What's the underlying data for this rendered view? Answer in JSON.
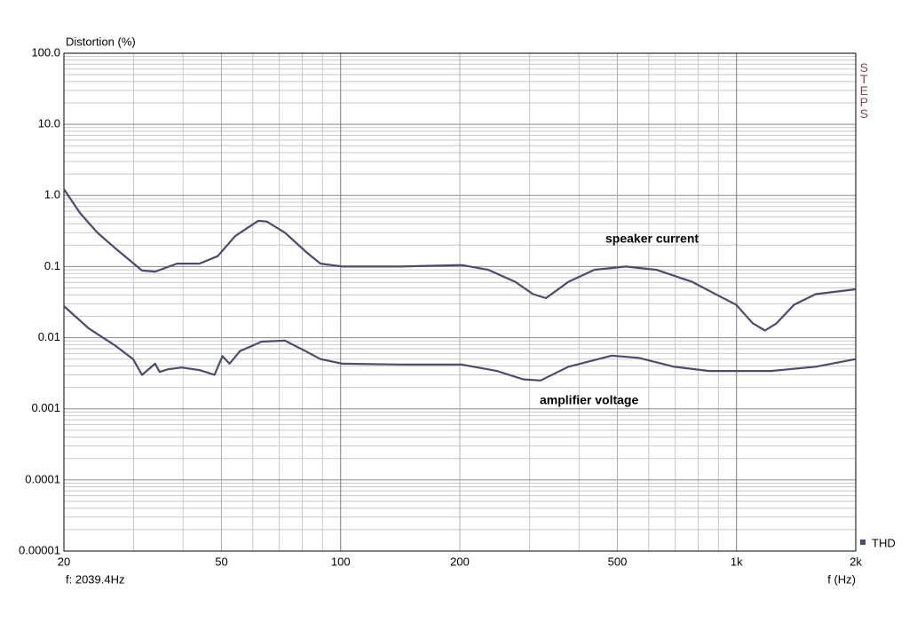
{
  "chart_data": {
    "type": "line",
    "y_label": "Distortion (%)",
    "x_label": "f (Hz)",
    "status": "f: 2039.4Hz",
    "brand": "STEPS",
    "legend_label": "THD",
    "log_x": true,
    "log_y": true,
    "grid": true,
    "minor_grid": true,
    "xlim": [
      20,
      2000
    ],
    "ylim": [
      1e-05,
      100
    ],
    "xticks": [
      20,
      50,
      100,
      200,
      500,
      {
        "value": 1000,
        "label": "1k"
      },
      {
        "value": 2000,
        "label": "2k"
      }
    ],
    "yticks": [
      {
        "value": 100,
        "label": "100.0"
      },
      {
        "value": 10,
        "label": "10.0"
      },
      {
        "value": 1,
        "label": "1.0"
      },
      0.1,
      0.01,
      0.001,
      0.0001,
      1e-05
    ],
    "series": [
      {
        "name": "speaker current",
        "color": "#4b4b6e",
        "x": [
          20,
          21.95,
          24.3,
          27.0,
          31.5,
          34.0,
          38.6,
          44.0,
          48.9,
          54.2,
          61.9,
          65.1,
          72.3,
          82.3,
          88.9,
          101,
          141,
          202,
          236,
          276,
          306,
          330,
          376,
          437,
          525,
          628,
          772,
          900,
          998,
          1098,
          1180,
          1261,
          1397,
          1584,
          2000
        ],
        "values": [
          1.23,
          0.57,
          0.3,
          0.18,
          0.088,
          0.085,
          0.11,
          0.11,
          0.14,
          0.27,
          0.44,
          0.43,
          0.3,
          0.156,
          0.11,
          0.1,
          0.1,
          0.105,
          0.09,
          0.061,
          0.041,
          0.036,
          0.061,
          0.09,
          0.1,
          0.09,
          0.061,
          0.039,
          0.029,
          0.016,
          0.0126,
          0.0159,
          0.029,
          0.041,
          0.048
        ]
      },
      {
        "name": "amplifier voltage",
        "color": "#4b4b6e",
        "x": [
          20,
          23.1,
          27.0,
          29.9,
          31.5,
          34.0,
          34.9,
          36.7,
          39.7,
          44.0,
          46.3,
          48.0,
          50.3,
          52.4,
          55.7,
          63.2,
          72.3,
          82.3,
          88.9,
          101,
          141,
          202,
          248,
          289,
          320,
          376,
          484,
          566,
          695,
          853,
          1222,
          1584,
          2000
        ],
        "values": [
          0.0278,
          0.0135,
          0.0077,
          0.005,
          0.003,
          0.0043,
          0.0033,
          0.0036,
          0.0038,
          0.0035,
          0.0032,
          0.003,
          0.0055,
          0.0043,
          0.0065,
          0.0088,
          0.0091,
          0.0063,
          0.005,
          0.0043,
          0.0042,
          0.0042,
          0.0034,
          0.0026,
          0.0025,
          0.0039,
          0.0056,
          0.0052,
          0.0039,
          0.0034,
          0.0034,
          0.0039,
          0.005
        ]
      }
    ]
  }
}
